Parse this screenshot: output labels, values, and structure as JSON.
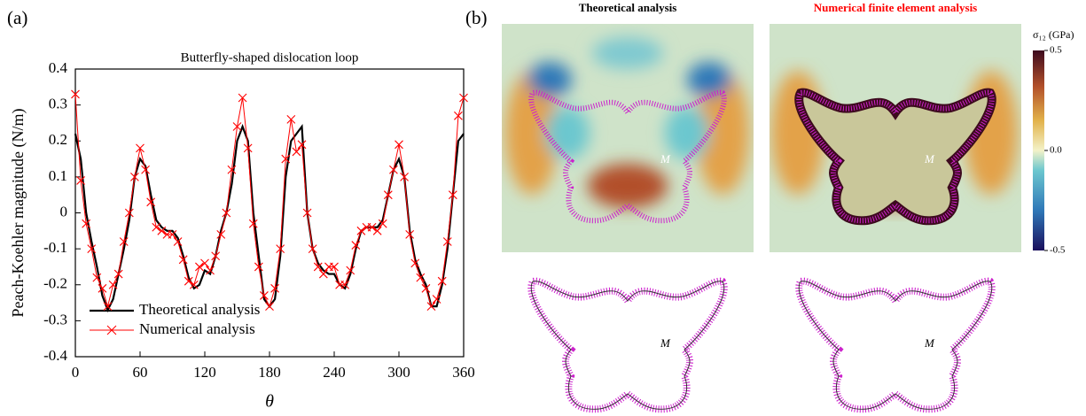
{
  "panel_a_label": "(a)",
  "chart_data": {
    "type": "line",
    "title": "Butterfly-shaped dislocation loop",
    "x_label": "θ",
    "y_label": "Peach-Koehler magnitude  (N/m)",
    "x": [
      0,
      5,
      10,
      15,
      20,
      25,
      30,
      35,
      40,
      45,
      50,
      55,
      60,
      65,
      70,
      75,
      80,
      85,
      90,
      95,
      100,
      105,
      110,
      115,
      120,
      125,
      130,
      135,
      140,
      145,
      150,
      155,
      160,
      165,
      170,
      175,
      180,
      185,
      190,
      195,
      200,
      205,
      210,
      215,
      220,
      225,
      230,
      235,
      240,
      245,
      250,
      255,
      260,
      265,
      270,
      275,
      280,
      285,
      290,
      295,
      300,
      305,
      310,
      315,
      320,
      325,
      330,
      335,
      340,
      345,
      350,
      355,
      360
    ],
    "series": [
      {
        "name": "Theoretical analysis",
        "color": "#000000",
        "values": [
          0.22,
          0.15,
          0.0,
          -0.08,
          -0.15,
          -0.23,
          -0.27,
          -0.24,
          -0.17,
          -0.1,
          -0.02,
          0.1,
          0.15,
          0.13,
          0.05,
          -0.02,
          -0.04,
          -0.05,
          -0.05,
          -0.07,
          -0.12,
          -0.18,
          -0.21,
          -0.2,
          -0.16,
          -0.17,
          -0.12,
          -0.05,
          0.0,
          0.08,
          0.2,
          0.24,
          0.2,
          0.0,
          -0.12,
          -0.24,
          -0.26,
          -0.24,
          -0.12,
          0.1,
          0.2,
          0.22,
          0.24,
          0.0,
          -0.1,
          -0.14,
          -0.16,
          -0.17,
          -0.17,
          -0.2,
          -0.21,
          -0.17,
          -0.1,
          -0.05,
          -0.04,
          -0.04,
          -0.04,
          -0.02,
          0.05,
          0.12,
          0.15,
          0.1,
          -0.05,
          -0.13,
          -0.17,
          -0.2,
          -0.26,
          -0.26,
          -0.2,
          -0.1,
          0.05,
          0.2,
          0.22
        ]
      },
      {
        "name": "Numerical analysis",
        "color": "#ff0000",
        "marker": "x",
        "values": [
          0.33,
          0.09,
          -0.03,
          -0.1,
          -0.18,
          -0.21,
          -0.26,
          -0.2,
          -0.17,
          -0.08,
          0.0,
          0.1,
          0.18,
          0.12,
          0.03,
          -0.04,
          -0.05,
          -0.06,
          -0.06,
          -0.08,
          -0.13,
          -0.19,
          -0.2,
          -0.15,
          -0.14,
          -0.16,
          -0.12,
          -0.06,
          0.0,
          0.12,
          0.24,
          0.32,
          0.18,
          -0.03,
          -0.15,
          -0.23,
          -0.26,
          -0.21,
          -0.1,
          0.15,
          0.26,
          0.17,
          0.19,
          0.0,
          -0.1,
          -0.15,
          -0.17,
          -0.15,
          -0.15,
          -0.2,
          -0.2,
          -0.16,
          -0.09,
          -0.05,
          -0.04,
          -0.04,
          -0.05,
          -0.03,
          0.05,
          0.12,
          0.19,
          0.1,
          -0.06,
          -0.14,
          -0.18,
          -0.21,
          -0.26,
          -0.24,
          -0.19,
          -0.08,
          0.05,
          0.27,
          0.32
        ]
      }
    ],
    "xlim": [
      0,
      360
    ],
    "xticks": [
      0,
      60,
      120,
      180,
      240,
      300,
      360
    ],
    "ylim": [
      -0.4,
      0.4
    ],
    "yticks": [
      -0.4,
      -0.3,
      -0.2,
      -0.1,
      0,
      0.1,
      0.2,
      0.3,
      0.4
    ],
    "legend": "lower left"
  },
  "panel_b": {
    "label": "(b)",
    "titles": [
      "Theoretical analysis",
      "Numerical finite element analysis"
    ],
    "point_label": "M",
    "colorbar": {
      "label": "σ₁₂ (GPa)",
      "lim": [
        -0.5,
        0.5
      ],
      "ticks": [
        0.5,
        {
          "value": 0,
          "label": "0.0"
        },
        -0.5
      ]
    }
  }
}
